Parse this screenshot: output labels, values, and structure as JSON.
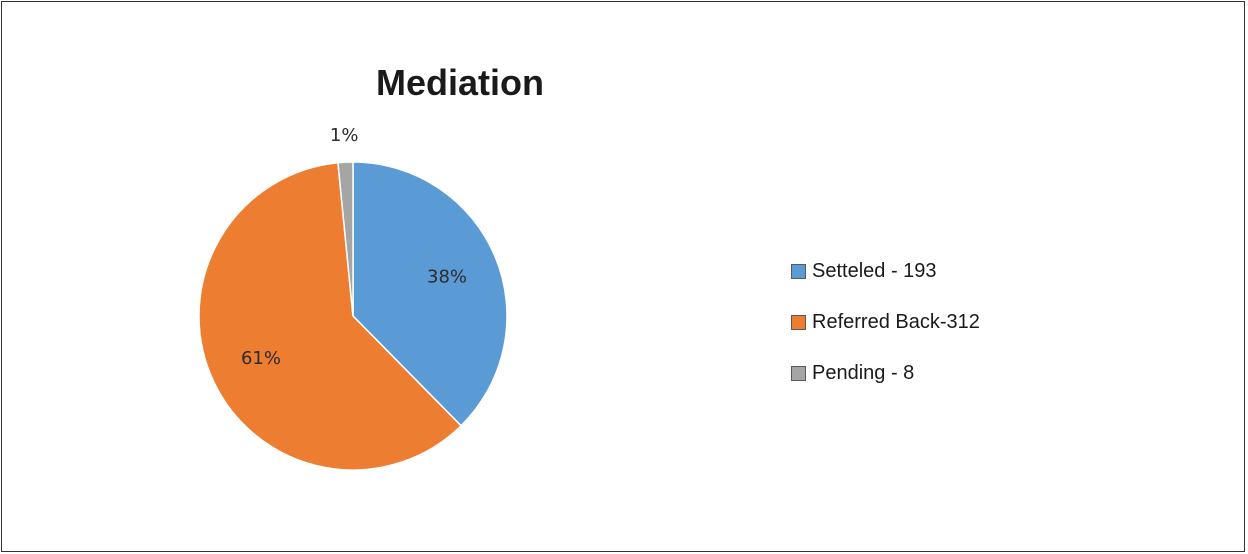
{
  "chart_data": {
    "type": "pie",
    "title": "Mediation",
    "slices": [
      {
        "label": "Setteled - 193",
        "value": 193,
        "percent_label": "38%",
        "color": "#5b9bd5"
      },
      {
        "label": "Referred Back-312",
        "value": 312,
        "percent_label": "61%",
        "color": "#ed7d31"
      },
      {
        "label": "Pending - 8",
        "value": 8,
        "percent_label": "1%",
        "color": "#a5a5a5"
      }
    ],
    "legend_position": "right"
  }
}
